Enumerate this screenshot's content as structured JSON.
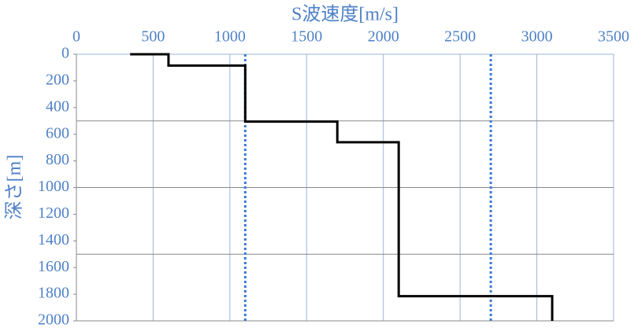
{
  "chart_data": {
    "type": "step",
    "title": "S波速度[m/s]",
    "y_label": "深さ[m]",
    "x": [
      350,
      600,
      600,
      1100,
      1100,
      1700,
      1700,
      2100,
      2100,
      3100,
      3100
    ],
    "values": [
      0,
      0,
      85,
      85,
      505,
      505,
      660,
      660,
      1815,
      1815,
      2000
    ],
    "color": "#000000",
    "vlines": {
      "values": [
        1100,
        2700
      ],
      "color": "#3a78d8"
    },
    "xlim": [
      0,
      3500
    ],
    "xticks": [
      0,
      500,
      1000,
      1500,
      2000,
      2500,
      3000,
      3500
    ],
    "ylim": [
      0,
      2000
    ],
    "yticks": [
      0,
      200,
      400,
      600,
      800,
      1000,
      1200,
      1400,
      1600,
      1800,
      2000
    ],
    "y_inverted": true,
    "x_grid": true,
    "y_grid": [
      500,
      1000,
      1500
    ]
  }
}
